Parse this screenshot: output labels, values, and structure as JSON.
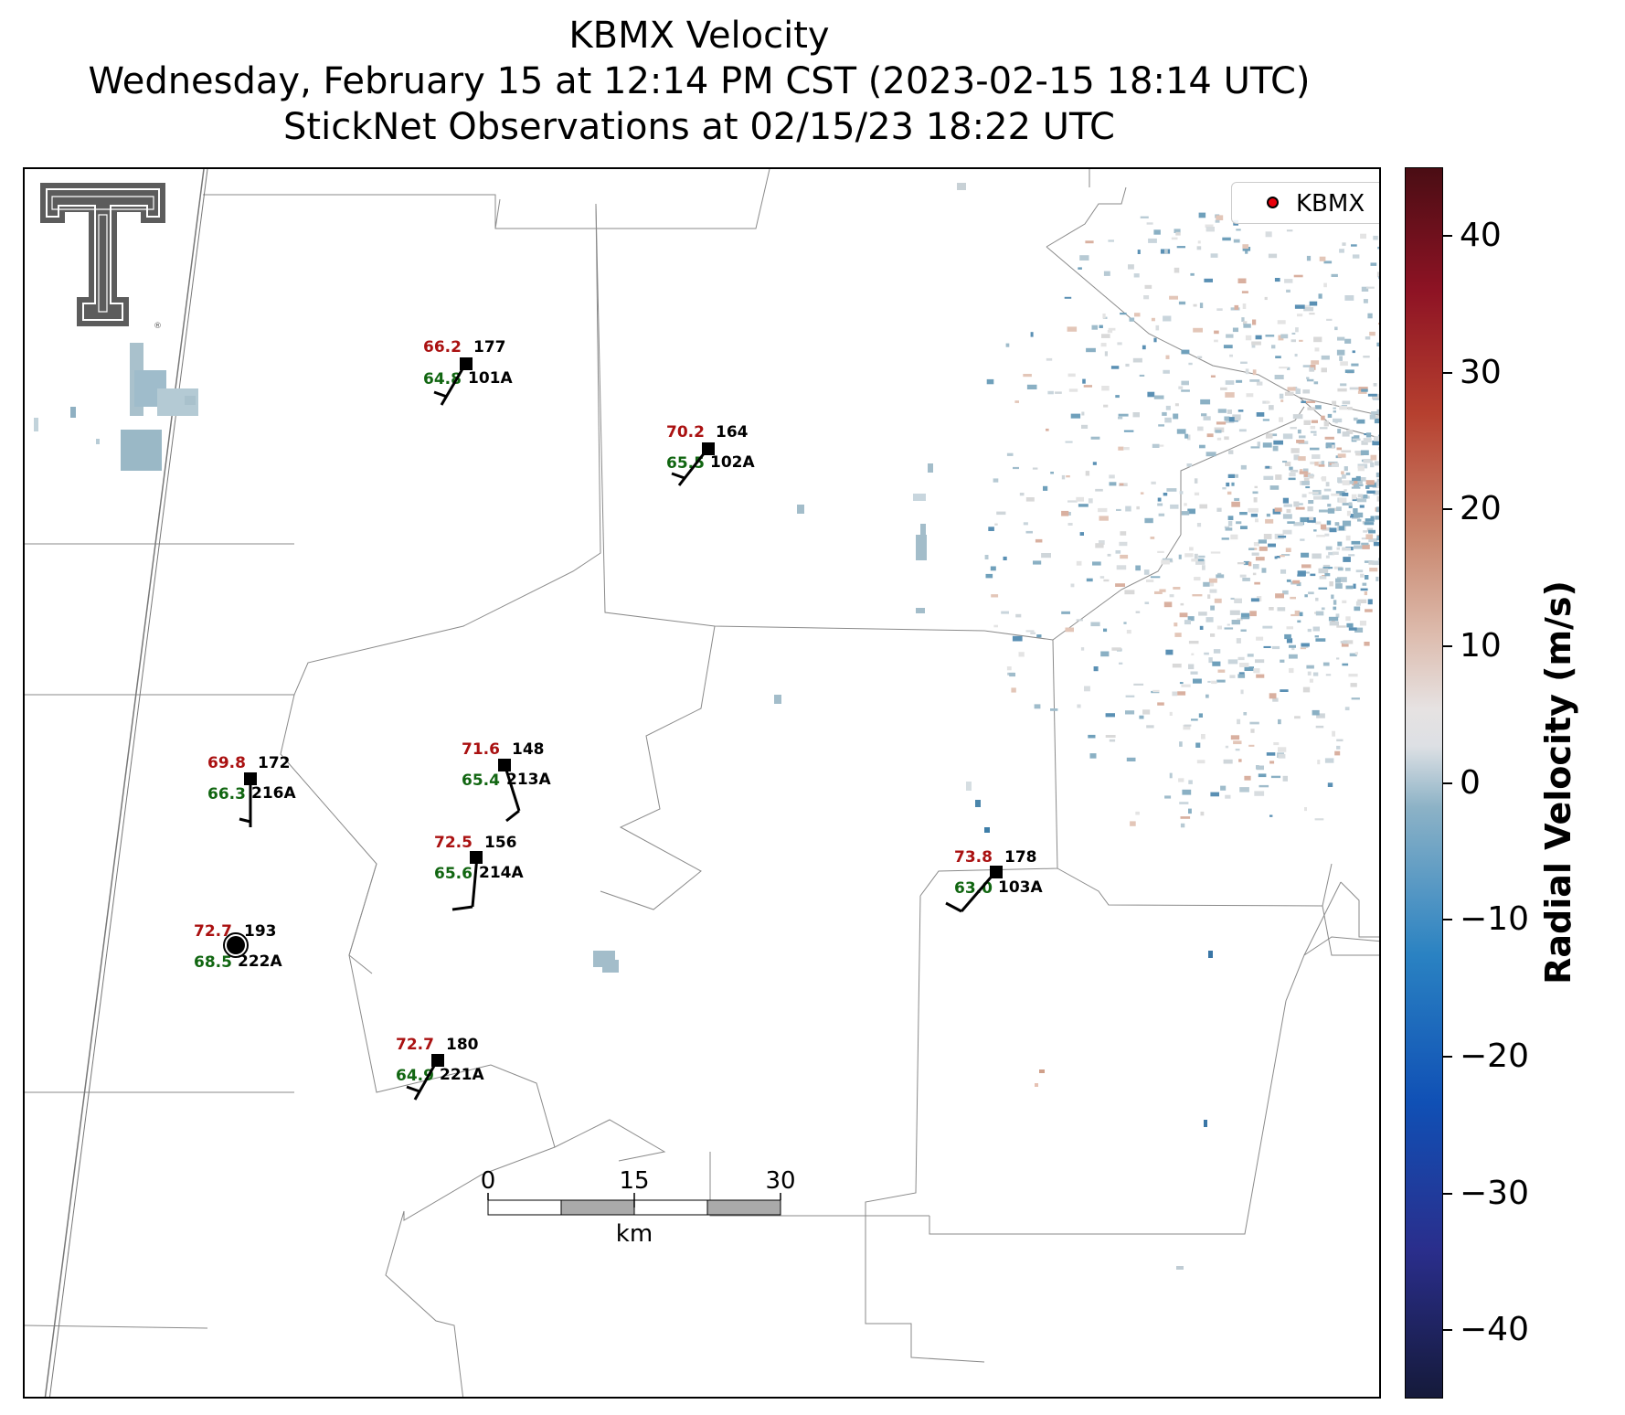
{
  "title": {
    "line1": "KBMX Velocity",
    "line2": "Wednesday, February 15 at 12:14 PM CST (2023-02-15 18:14 UTC)",
    "line3": "StickNet Observations at 02/15/23 18:22 UTC"
  },
  "legend": {
    "label": "KBMX",
    "marker_color": "#e8000b"
  },
  "logo": {
    "icon": "texas-tech-double-t-logo",
    "color": "#5a5a5a"
  },
  "stations": [
    {
      "id": "101A",
      "temp": "66.2",
      "dew": "64.8",
      "pressure": "177",
      "barb": "wind-barb"
    },
    {
      "id": "102A",
      "temp": "70.2",
      "dew": "65.5",
      "pressure": "164",
      "barb": "wind-barb"
    },
    {
      "id": "216A",
      "temp": "69.8",
      "dew": "66.3",
      "pressure": "172",
      "barb": "wind-barb"
    },
    {
      "id": "213A",
      "temp": "71.6",
      "dew": "65.4",
      "pressure": "148",
      "barb": "wind-barb"
    },
    {
      "id": "214A",
      "temp": "72.5",
      "dew": "65.6",
      "pressure": "156",
      "barb": "wind-barb"
    },
    {
      "id": "103A",
      "temp": "73.8",
      "dew": "63.0",
      "pressure": "178",
      "barb": "wind-barb"
    },
    {
      "id": "222A",
      "temp": "72.7",
      "dew": "68.5",
      "pressure": "193",
      "barb": "calm-circle"
    },
    {
      "id": "221A",
      "temp": "72.7",
      "dew": "64.9",
      "pressure": "180",
      "barb": "wind-barb"
    }
  ],
  "scalebar": {
    "labels": [
      "0",
      "15",
      "30"
    ],
    "unit": "km"
  },
  "colorbar": {
    "label": "Radial Velocity (m/s)",
    "min": -45,
    "max": 45,
    "ticks": [
      "40",
      "30",
      "20",
      "10",
      "0",
      "−10",
      "−20",
      "−30",
      "−40"
    ],
    "colors": {
      "neg_max": "#151a3a",
      "neg_mid": "#1050b5",
      "neg_low": "#8cb2c6",
      "zero": "#e0e0e2",
      "pos_low": "#ddbcae",
      "pos_mid": "#b6402f",
      "pos_max": "#4a0d14"
    }
  }
}
